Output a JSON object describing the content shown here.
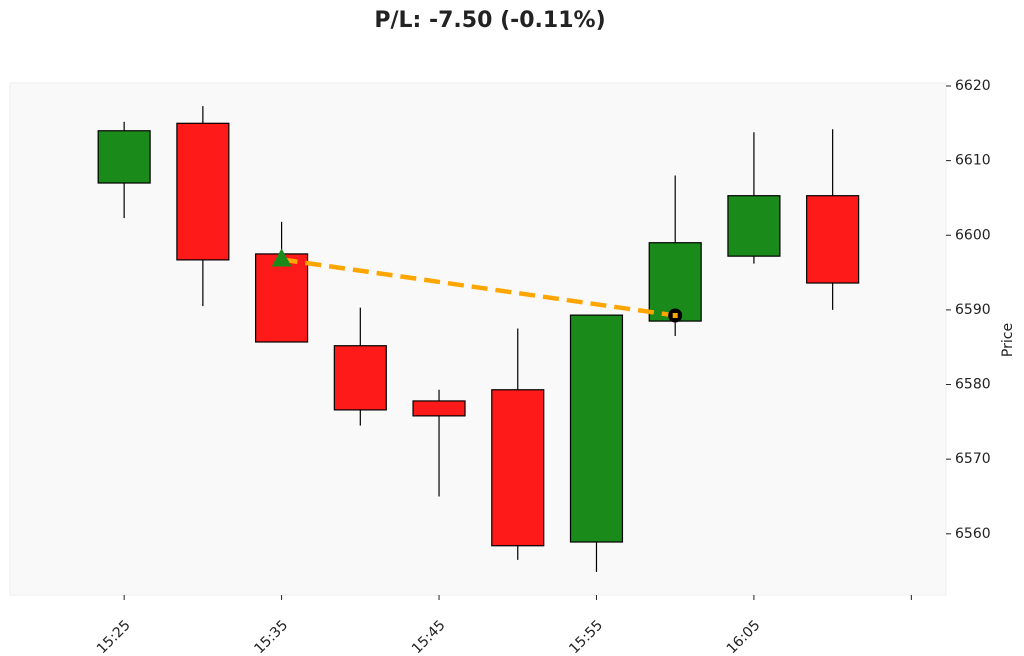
{
  "chart_data": {
    "type": "candlestick",
    "title": "P/L: -7.50 (-0.11%)",
    "ylabel": "Price",
    "categories": [
      "15:25",
      null,
      "15:35",
      null,
      "15:45",
      null,
      "15:55",
      null,
      "16:05",
      null
    ],
    "open": [
      6607.0,
      6615.0,
      6597.5,
      6585.2,
      6577.8,
      6579.3,
      6558.9,
      6588.5,
      6597.2,
      6605.3
    ],
    "high": [
      6615.2,
      6617.3,
      6601.8,
      6590.3,
      6579.3,
      6587.5,
      6589.3,
      6608.0,
      6613.8,
      6614.2
    ],
    "low": [
      6602.3,
      6590.5,
      6585.7,
      6574.5,
      6565.0,
      6556.5,
      6554.9,
      6586.5,
      6596.2,
      6590.0
    ],
    "close": [
      6614.0,
      6596.7,
      6585.7,
      6576.6,
      6575.8,
      6558.4,
      6589.3,
      6599.0,
      6605.3,
      6593.6
    ],
    "up_color": "#1a8a1a",
    "down_color": "#ff1a1a",
    "trade": {
      "entry_index": 2,
      "entry_price": 6596.75,
      "exit_index": 7,
      "exit_price": 6589.25,
      "color": "#ffa500"
    },
    "xlim": [
      -1.45,
      10.44
    ],
    "xticks": [
      0,
      2,
      4,
      6,
      8,
      10
    ],
    "ylim": [
      6551.8,
      6620.4
    ],
    "yticks": [
      6560,
      6570,
      6580,
      6590,
      6600,
      6610,
      6620
    ]
  }
}
